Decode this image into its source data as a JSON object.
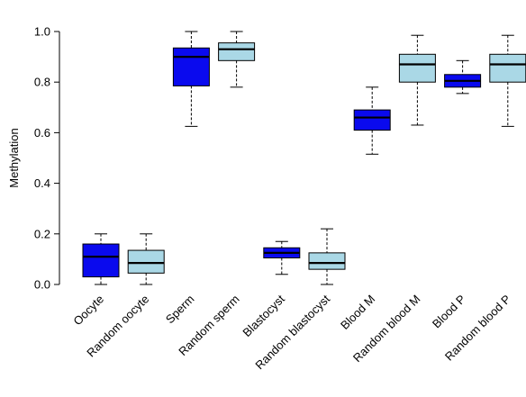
{
  "chart_data": {
    "type": "box",
    "title": "",
    "xlabel": "",
    "ylabel": "Methylation",
    "ylim": [
      0.0,
      1.0
    ],
    "yticks": [
      "0.0",
      "0.2",
      "0.4",
      "0.6",
      "0.8",
      "1.0"
    ],
    "grid": false,
    "legend": "none",
    "colors": {
      "observed": "#0a0aee",
      "random": "#aad8e6",
      "outline": "#000000"
    },
    "categories": [
      "Oocyte",
      "Random oocyte",
      "Sperm",
      "Random sperm",
      "Blastocyst",
      "Random blastocyst",
      "Blood M",
      "Random blood M",
      "Blood P",
      "Random blood P"
    ],
    "boxes": [
      {
        "label": "Oocyte",
        "group": "observed",
        "whisker_low": 0.0,
        "q1": 0.03,
        "median": 0.11,
        "q3": 0.16,
        "whisker_high": 0.2
      },
      {
        "label": "Random oocyte",
        "group": "random",
        "whisker_low": 0.0,
        "q1": 0.045,
        "median": 0.085,
        "q3": 0.135,
        "whisker_high": 0.2
      },
      {
        "label": "Sperm",
        "group": "observed",
        "whisker_low": 0.625,
        "q1": 0.785,
        "median": 0.9,
        "q3": 0.935,
        "whisker_high": 1.0
      },
      {
        "label": "Random sperm",
        "group": "random",
        "whisker_low": 0.78,
        "q1": 0.885,
        "median": 0.93,
        "q3": 0.955,
        "whisker_high": 1.0
      },
      {
        "label": "Blastocyst",
        "group": "observed",
        "whisker_low": 0.04,
        "q1": 0.105,
        "median": 0.125,
        "q3": 0.145,
        "whisker_high": 0.17
      },
      {
        "label": "Random blastocyst",
        "group": "random",
        "whisker_low": 0.0,
        "q1": 0.06,
        "median": 0.085,
        "q3": 0.125,
        "whisker_high": 0.22
      },
      {
        "label": "Blood M",
        "group": "observed",
        "whisker_low": 0.515,
        "q1": 0.61,
        "median": 0.66,
        "q3": 0.69,
        "whisker_high": 0.78
      },
      {
        "label": "Random blood M",
        "group": "random",
        "whisker_low": 0.63,
        "q1": 0.8,
        "median": 0.87,
        "q3": 0.91,
        "whisker_high": 0.985
      },
      {
        "label": "Blood P",
        "group": "observed",
        "whisker_low": 0.755,
        "q1": 0.78,
        "median": 0.805,
        "q3": 0.83,
        "whisker_high": 0.885
      },
      {
        "label": "Random blood P",
        "group": "random",
        "whisker_low": 0.625,
        "q1": 0.8,
        "median": 0.87,
        "q3": 0.91,
        "whisker_high": 0.985
      }
    ]
  }
}
